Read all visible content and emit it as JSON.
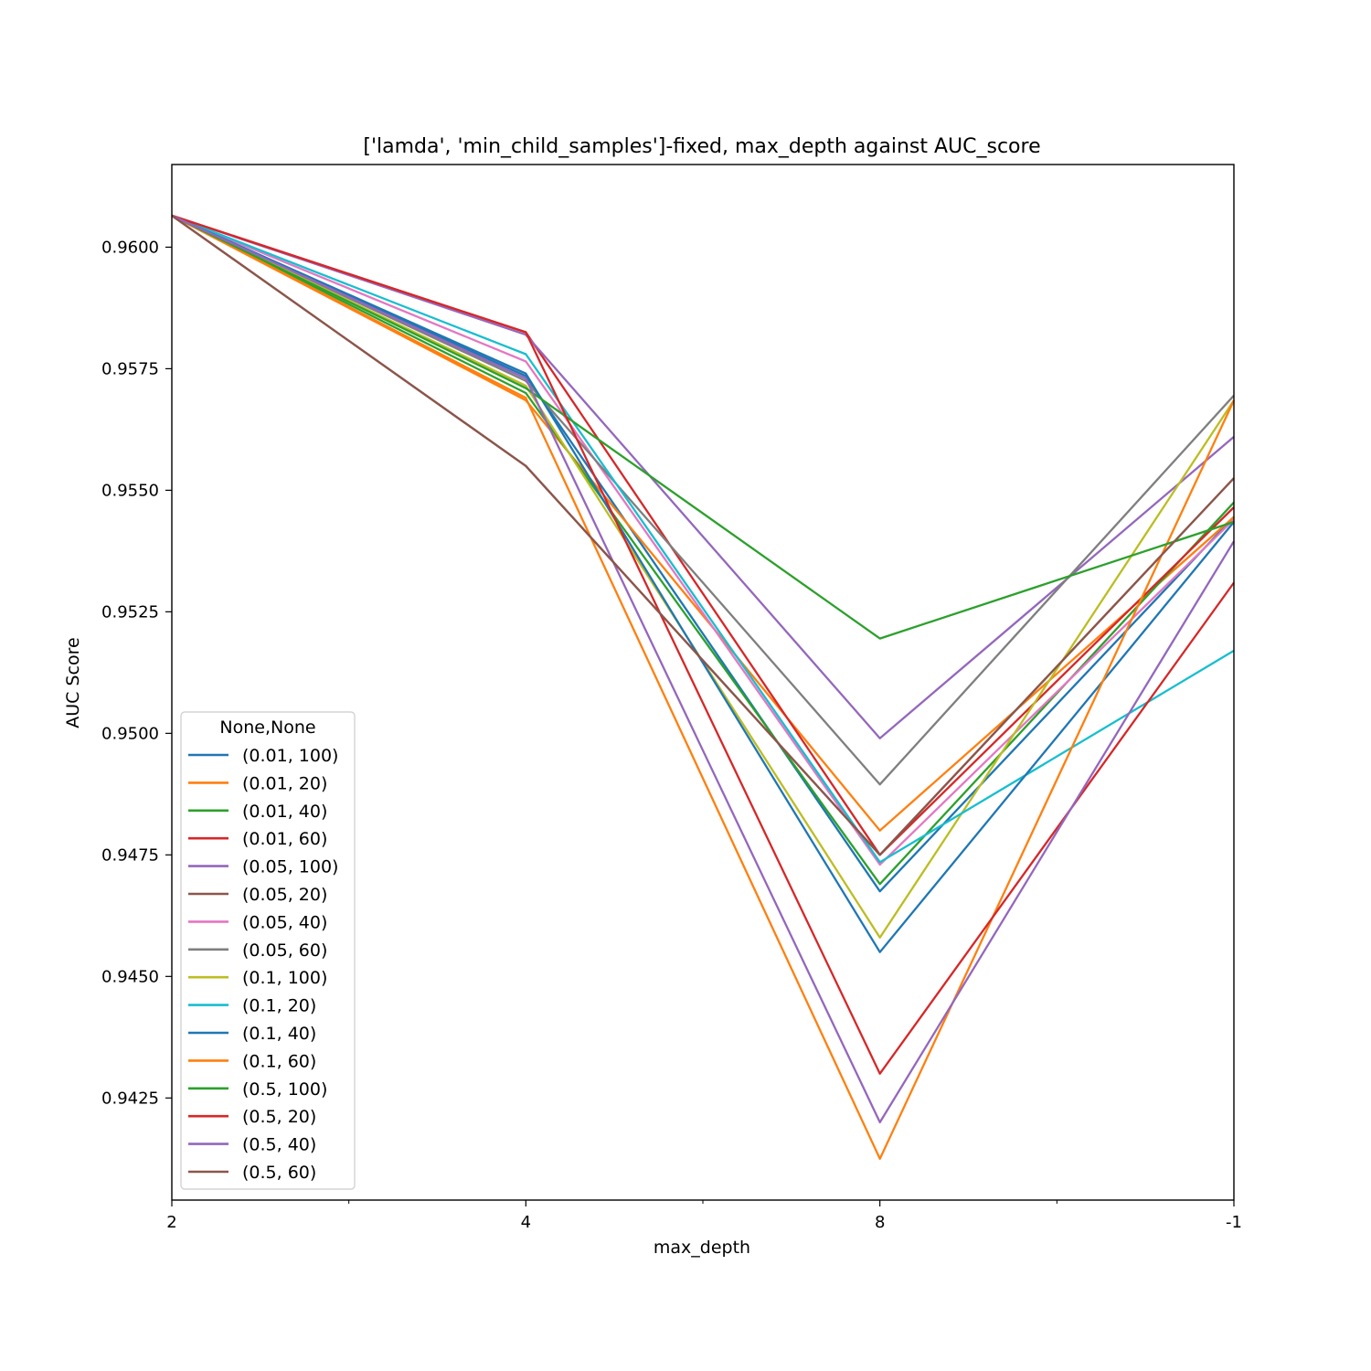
{
  "chart_data": {
    "type": "line",
    "title": "['lamda', 'min_child_samples']-fixed, max_depth against AUC_score",
    "xlabel": "max_depth",
    "ylabel": "AUC Score",
    "categories": [
      "2",
      "4",
      "8",
      "-1"
    ],
    "ylim": [
      0.9404,
      0.9617
    ],
    "yticks": [
      0.9425,
      0.945,
      0.9475,
      0.95,
      0.9525,
      0.955,
      0.9575,
      0.96
    ],
    "ytick_labels": [
      "0.9425",
      "0.9450",
      "0.9475",
      "0.9500",
      "0.9525",
      "0.9550",
      "0.9575",
      "0.9600"
    ],
    "legend": {
      "title": "None,None",
      "position": "lower-left"
    },
    "series": [
      {
        "name": "(0.01, 100)",
        "color": "#1f77b4",
        "values": [
          0.96065,
          0.95735,
          0.94675,
          0.95445
        ]
      },
      {
        "name": "(0.01, 20)",
        "color": "#ff7f0e",
        "values": [
          0.96065,
          0.95685,
          0.948,
          0.95445
        ]
      },
      {
        "name": "(0.01, 40)",
        "color": "#2ca02c",
        "values": [
          0.96065,
          0.957,
          0.9469,
          0.95475
        ]
      },
      {
        "name": "(0.01, 60)",
        "color": "#d62728",
        "values": [
          0.96065,
          0.95825,
          0.9475,
          0.95465
        ]
      },
      {
        "name": "(0.05, 100)",
        "color": "#9467bd",
        "values": [
          0.96065,
          0.9582,
          0.9499,
          0.9561
        ]
      },
      {
        "name": "(0.05, 20)",
        "color": "#8c564b",
        "values": [
          0.96065,
          0.9555,
          0.9475,
          0.95525
        ]
      },
      {
        "name": "(0.05, 40)",
        "color": "#e377c2",
        "values": [
          0.96065,
          0.95765,
          0.9473,
          0.9544
        ]
      },
      {
        "name": "(0.05, 60)",
        "color": "#7f7f7f",
        "values": [
          0.96065,
          0.95725,
          0.94895,
          0.95695
        ]
      },
      {
        "name": "(0.1, 100)",
        "color": "#bcbd22",
        "values": [
          0.96065,
          0.95715,
          0.9458,
          0.95685
        ]
      },
      {
        "name": "(0.1, 20)",
        "color": "#17becf",
        "values": [
          0.96065,
          0.9578,
          0.94735,
          0.9517
        ]
      },
      {
        "name": "(0.1, 40)",
        "color": "#1f77b4",
        "values": [
          0.96065,
          0.9574,
          0.9455,
          0.95435
        ]
      },
      {
        "name": "(0.1, 60)",
        "color": "#ff7f0e",
        "values": [
          0.96065,
          0.9569,
          0.94125,
          0.95685
        ]
      },
      {
        "name": "(0.5, 100)",
        "color": "#2ca02c",
        "values": [
          0.96065,
          0.9571,
          0.95195,
          0.95435
        ]
      },
      {
        "name": "(0.5, 20)",
        "color": "#d62728",
        "values": [
          0.96065,
          0.95825,
          0.943,
          0.9531
        ]
      },
      {
        "name": "(0.5, 40)",
        "color": "#9467bd",
        "values": [
          0.96065,
          0.9573,
          0.942,
          0.95395
        ]
      },
      {
        "name": "(0.5, 60)",
        "color": "#8c564b",
        "values": [
          0.96065,
          0.9555,
          0.9475,
          0.95525
        ]
      }
    ]
  }
}
